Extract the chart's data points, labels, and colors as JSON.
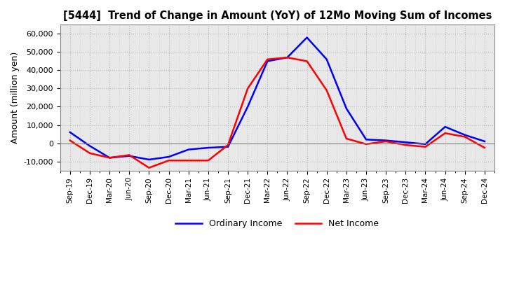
{
  "title": "[5444]  Trend of Change in Amount (YoY) of 12Mo Moving Sum of Incomes",
  "ylabel": "Amount (million yen)",
  "x_labels": [
    "Sep-19",
    "Dec-19",
    "Mar-20",
    "Jun-20",
    "Sep-20",
    "Dec-20",
    "Mar-21",
    "Jun-21",
    "Sep-21",
    "Dec-21",
    "Mar-22",
    "Jun-22",
    "Sep-22",
    "Dec-22",
    "Mar-23",
    "Jun-23",
    "Sep-23",
    "Dec-23",
    "Mar-24",
    "Jun-24",
    "Sep-24",
    "Dec-24"
  ],
  "ordinary_income": [
    6000,
    -1500,
    -8000,
    -7000,
    -9000,
    -7500,
    -3500,
    -2500,
    -2000,
    20000,
    45000,
    47000,
    58000,
    46000,
    19000,
    2000,
    1500,
    500,
    -500,
    9000,
    4500,
    1000
  ],
  "net_income": [
    1500,
    -5500,
    -8000,
    -6500,
    -13500,
    -9500,
    -9500,
    -9500,
    -1000,
    30000,
    46000,
    47000,
    45000,
    29000,
    2500,
    -500,
    1000,
    -1000,
    -2000,
    5500,
    3500,
    -2500
  ],
  "ordinary_color": "#0000ff",
  "net_color": "#ff0000",
  "ylim": [
    -15000,
    65000
  ],
  "yticks": [
    -10000,
    0,
    10000,
    20000,
    30000,
    40000,
    50000,
    60000
  ],
  "legend_ordinary": "Ordinary Income",
  "legend_net": "Net Income",
  "bg_color": "#ffffff",
  "plot_bg_color": "#e8e8e8",
  "grid_color": "#ffffff",
  "grid_minor_color": "#cccccc",
  "line_width": 1.8
}
